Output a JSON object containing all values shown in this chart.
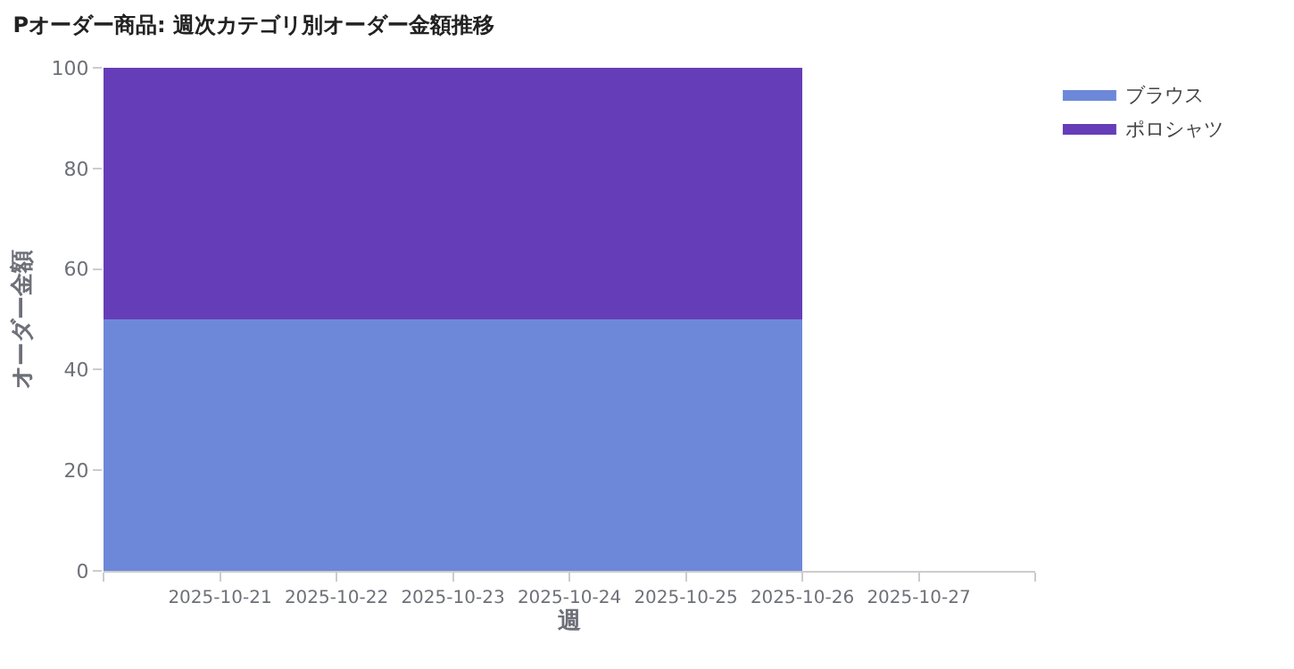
{
  "chart_data": {
    "type": "area",
    "title": "Pオーダー商品: 週次カテゴリ別オーダー金額推移",
    "xlabel": "週",
    "ylabel": "オーダー金額",
    "x": [
      "2025-10-20",
      "2025-10-26"
    ],
    "stacked": true,
    "series": [
      {
        "name": "ブラウス",
        "color": "#6e88d9",
        "values": [
          50,
          50
        ]
      },
      {
        "name": "ポロシャツ",
        "color": "#663db8",
        "values": [
          50,
          50
        ]
      }
    ],
    "xlim": [
      "2025-10-20",
      "2025-10-28"
    ],
    "xticks": [
      {
        "value": "2025-10-20",
        "label": null
      },
      {
        "value": "2025-10-21",
        "label": "2025-10-21"
      },
      {
        "value": "2025-10-22",
        "label": "2025-10-22"
      },
      {
        "value": "2025-10-23",
        "label": "2025-10-23"
      },
      {
        "value": "2025-10-24",
        "label": "2025-10-24"
      },
      {
        "value": "2025-10-25",
        "label": "2025-10-25"
      },
      {
        "value": "2025-10-26",
        "label": "2025-10-26"
      },
      {
        "value": "2025-10-27",
        "label": "2025-10-27"
      },
      {
        "value": "2025-10-28",
        "label": null
      }
    ],
    "ylim": [
      0,
      100
    ],
    "yticks": [
      0,
      20,
      40,
      60,
      80,
      100
    ],
    "legend": "top right"
  }
}
